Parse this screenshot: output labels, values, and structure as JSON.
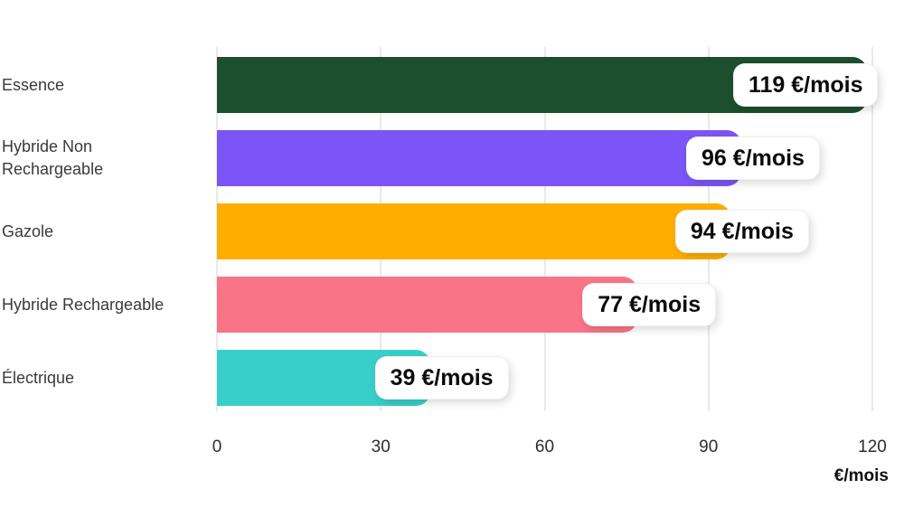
{
  "chart_data": {
    "type": "bar",
    "orientation": "horizontal",
    "title": "",
    "xlabel": "€/mois",
    "ylabel": "",
    "xlim": [
      0,
      120
    ],
    "grid": "vertical",
    "legend": "none",
    "categories": [
      "Essence",
      "Hybride Non Rechargeable",
      "Gazole",
      "Hybride Rechargeable",
      "Électrique"
    ],
    "values": [
      119,
      96,
      94,
      77,
      39
    ],
    "value_labels": [
      "119 €/mois",
      "96 €/mois",
      "94 €/mois",
      "77 €/mois",
      "39 €/mois"
    ],
    "bar_colors": [
      "#1C4F2E",
      "#7B55F7",
      "#FFAE00",
      "#FA7488",
      "#38CFC9"
    ],
    "x_tick_values": [
      0,
      30,
      60,
      90,
      120
    ],
    "x_tick_labels": [
      "0",
      "30",
      "60",
      "90",
      "120"
    ]
  },
  "colors": {
    "background": "#ffffff",
    "gridline": "#e9e9e9",
    "category_text": "#3a3a3a",
    "tick_text": "#2d2d2d",
    "value_text": "#0b0b0b"
  }
}
